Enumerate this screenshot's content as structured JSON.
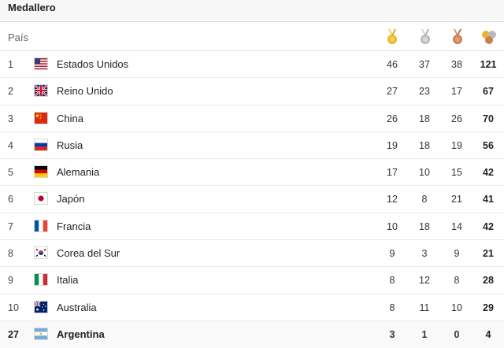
{
  "header": {
    "title": "Medallero"
  },
  "table": {
    "country_label": "País",
    "medal_icons": [
      "gold-medal-icon",
      "silver-medal-icon",
      "bronze-medal-icon",
      "total-medals-icon"
    ],
    "rows": [
      {
        "rank": "1",
        "country": "Estados Unidos",
        "flag": "us-flag-icon",
        "gold": "46",
        "silver": "37",
        "bronze": "38",
        "total": "121"
      },
      {
        "rank": "2",
        "country": "Reino Unido",
        "flag": "uk-flag-icon",
        "gold": "27",
        "silver": "23",
        "bronze": "17",
        "total": "67"
      },
      {
        "rank": "3",
        "country": "China",
        "flag": "china-flag-icon",
        "gold": "26",
        "silver": "18",
        "bronze": "26",
        "total": "70"
      },
      {
        "rank": "4",
        "country": "Rusia",
        "flag": "russia-flag-icon",
        "gold": "19",
        "silver": "18",
        "bronze": "19",
        "total": "56"
      },
      {
        "rank": "5",
        "country": "Alemania",
        "flag": "germany-flag-icon",
        "gold": "17",
        "silver": "10",
        "bronze": "15",
        "total": "42"
      },
      {
        "rank": "6",
        "country": "Japón",
        "flag": "japan-flag-icon",
        "gold": "12",
        "silver": "8",
        "bronze": "21",
        "total": "41"
      },
      {
        "rank": "7",
        "country": "Francia",
        "flag": "france-flag-icon",
        "gold": "10",
        "silver": "18",
        "bronze": "14",
        "total": "42"
      },
      {
        "rank": "8",
        "country": "Corea del Sur",
        "flag": "south-korea-flag-icon",
        "gold": "9",
        "silver": "3",
        "bronze": "9",
        "total": "21"
      },
      {
        "rank": "9",
        "country": "Italia",
        "flag": "italy-flag-icon",
        "gold": "8",
        "silver": "12",
        "bronze": "8",
        "total": "28"
      },
      {
        "rank": "10",
        "country": "Australia",
        "flag": "australia-flag-icon",
        "gold": "8",
        "silver": "11",
        "bronze": "10",
        "total": "29"
      },
      {
        "rank": "27",
        "country": "Argentina",
        "flag": "argentina-flag-icon",
        "gold": "3",
        "silver": "1",
        "bronze": "0",
        "total": "4"
      }
    ]
  },
  "colors": {
    "gold": "#e8b62c",
    "silver": "#b9b9b9",
    "bronze": "#c97f4e",
    "ribbon": "#f0c44c"
  }
}
